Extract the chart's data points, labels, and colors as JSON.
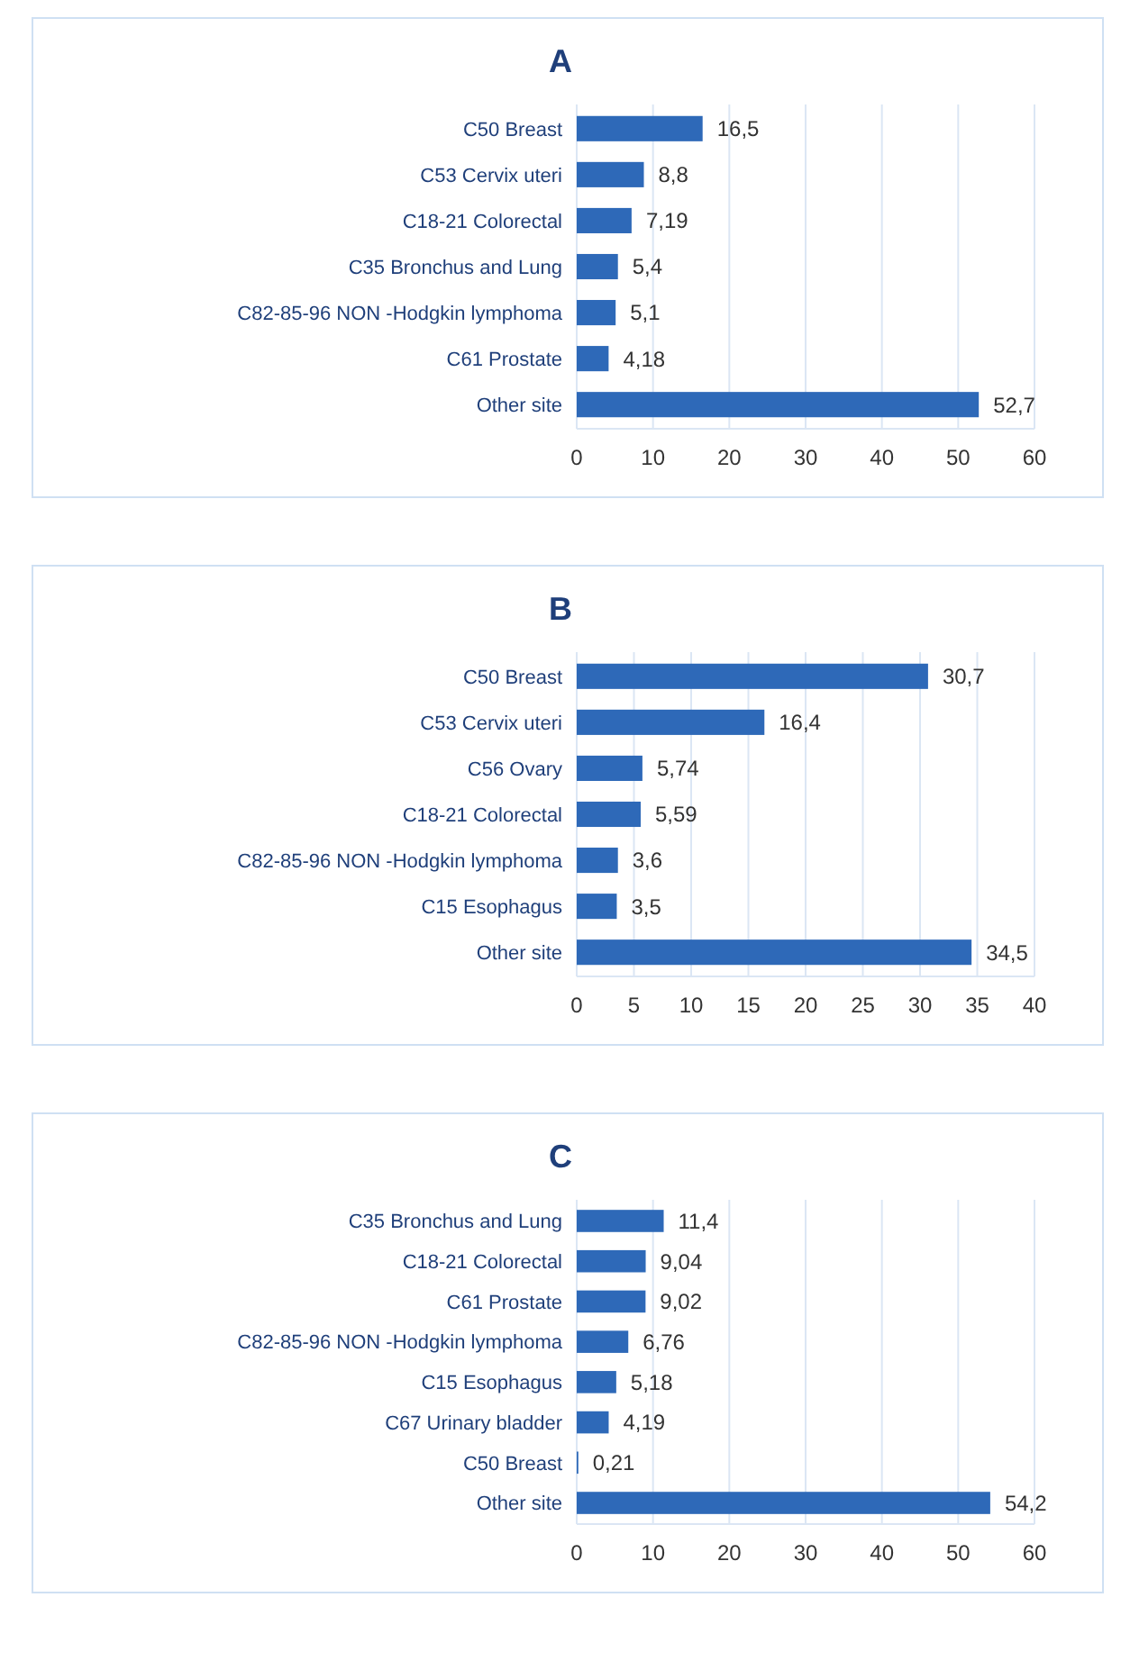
{
  "chart_data": [
    {
      "type": "bar",
      "title": "A",
      "orientation": "horizontal",
      "categories": [
        "C50 Breast",
        "C53 Cervix uteri",
        "C18-21 Colorectal",
        "C35 Bronchus and Lung",
        "C82-85-96 NON -Hodgkin lymphoma",
        "C61 Prostate",
        "Other site"
      ],
      "values": [
        16.5,
        8.8,
        7.19,
        5.4,
        5.1,
        4.18,
        52.7
      ],
      "value_labels": [
        "16,5",
        "8,8",
        "7,19",
        "5,4",
        "5,1",
        "4,18",
        "52,7"
      ],
      "color": "#2e69b8",
      "xlim": [
        0,
        60
      ],
      "xticks": [
        0,
        10,
        20,
        30,
        40,
        50,
        60
      ],
      "grid": "x"
    },
    {
      "type": "bar",
      "title": "B",
      "orientation": "horizontal",
      "categories": [
        "C50 Breast",
        "C53 Cervix uteri",
        "C56 Ovary",
        "C18-21 Colorectal",
        "C82-85-96 NON -Hodgkin lymphoma",
        "C15 Esophagus",
        "Other site"
      ],
      "values": [
        30.7,
        16.4,
        5.74,
        5.59,
        3.6,
        3.5,
        34.5
      ],
      "value_labels": [
        "30,7",
        "16,4",
        "5,74",
        "5,59",
        "3,6",
        "3,5",
        "34,5"
      ],
      "color": "#2e69b8",
      "xlim": [
        0,
        40
      ],
      "xticks": [
        0,
        5,
        10,
        15,
        20,
        25,
        30,
        35,
        40
      ],
      "grid": "x"
    },
    {
      "type": "bar",
      "title": "C",
      "orientation": "horizontal",
      "categories": [
        "C35 Bronchus and Lung",
        "C18-21 Colorectal",
        "C61 Prostate",
        "C82-85-96 NON -Hodgkin lymphoma",
        "C15 Esophagus",
        "C67 Urinary bladder",
        "C50 Breast",
        "Other site"
      ],
      "values": [
        11.4,
        9.04,
        9.02,
        6.76,
        5.18,
        4.19,
        0.21,
        54.2
      ],
      "value_labels": [
        "11,4",
        "9,04",
        "9,02",
        "6,76",
        "5,18",
        "4,19",
        "0,21",
        "54,2"
      ],
      "color": "#2e69b8",
      "xlim": [
        0,
        60
      ],
      "xticks": [
        0,
        10,
        20,
        30,
        40,
        50,
        60
      ],
      "grid": "x"
    }
  ]
}
